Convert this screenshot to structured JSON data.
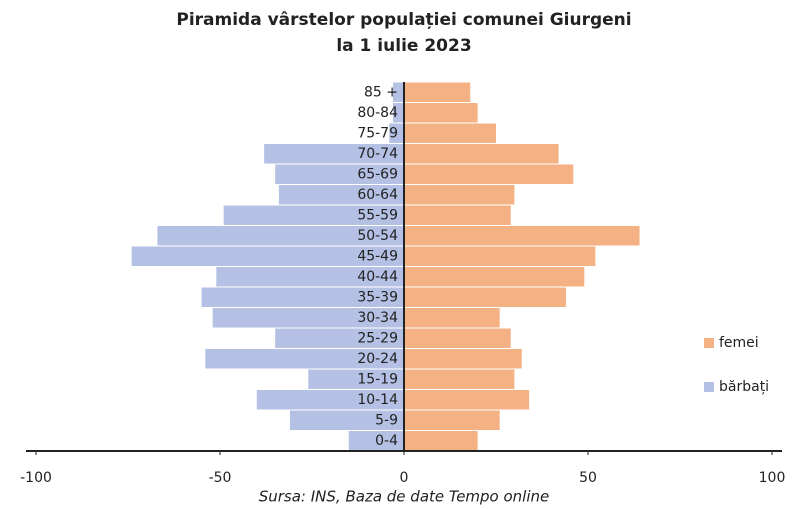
{
  "chart_data": {
    "type": "pyramid",
    "title": [
      "Piramida vârstelor populației comunei Giurgeni",
      "la 1 iulie 2023"
    ],
    "source": "Sursa: INS, Baza de date Tempo online",
    "categories": [
      "0-4",
      "5-9",
      "10-14",
      "15-19",
      "20-24",
      "25-29",
      "30-34",
      "35-39",
      "40-44",
      "45-49",
      "50-54",
      "55-59",
      "60-64",
      "65-69",
      "70-74",
      "75-79",
      "80-84",
      "85 +"
    ],
    "series": [
      {
        "name": "femei",
        "color": "#f4b183",
        "values": [
          20,
          26,
          34,
          30,
          32,
          29,
          26,
          44,
          49,
          52,
          64,
          29,
          30,
          46,
          42,
          25,
          20,
          18
        ]
      },
      {
        "name": "bărbați",
        "color": "#b4c0e4",
        "values": [
          -15,
          -31,
          -40,
          -26,
          -54,
          -35,
          -52,
          -55,
          -51,
          -74,
          -67,
          -49,
          -34,
          -35,
          -38,
          -4,
          -3,
          -3
        ]
      }
    ],
    "xlim": [
      -100,
      100
    ],
    "xticks": [
      -100,
      -50,
      0,
      50,
      100
    ],
    "legend": "right"
  }
}
